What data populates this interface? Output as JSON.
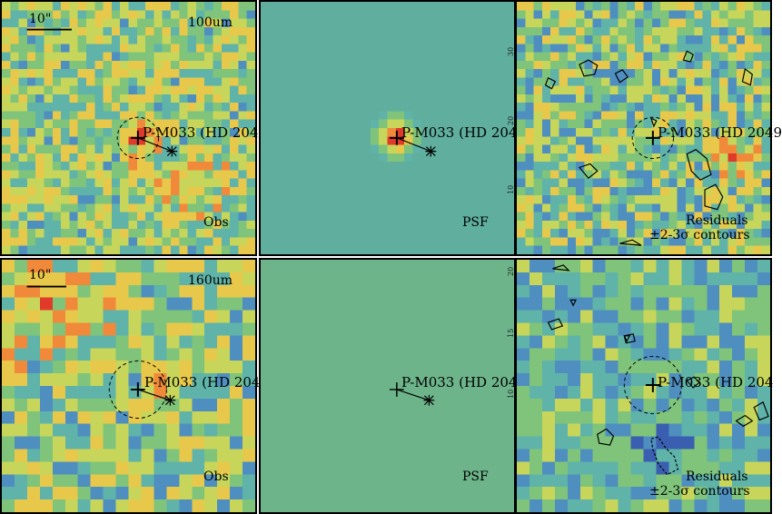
{
  "source_name": "P-M033 (HD 204",
  "source_name_top": "P-M033 (HD 2049",
  "scale_bar": "10\"",
  "rows": [
    {
      "band": "100um",
      "panels": [
        {
          "kind": "obs",
          "corner_label": "Obs"
        },
        {
          "kind": "psf",
          "corner_label": "PSF"
        },
        {
          "kind": "res",
          "corner_label_1": "Residuals",
          "corner_label_2": "±2-3σ contours"
        }
      ],
      "tick_numbers": [
        "30",
        "20",
        "10"
      ]
    },
    {
      "band": "160um",
      "panels": [
        {
          "kind": "obs",
          "corner_label": "Obs"
        },
        {
          "kind": "psf",
          "corner_label": "PSF"
        },
        {
          "kind": "res",
          "corner_label_1": "Residuals",
          "corner_label_2": "±2-3σ contours"
        }
      ],
      "tick_numbers": [
        "20",
        "15",
        "10"
      ]
    }
  ],
  "colors": {
    "colormap": [
      "#3b2a8c",
      "#3a5fb0",
      "#4f8fc0",
      "#5fb3a8",
      "#7fc47a",
      "#c7d65a",
      "#e8c84a",
      "#f08a3a",
      "#e03a2a"
    ],
    "psf_background_top": "#5fae9e",
    "psf_background_bottom": "#6db48a"
  }
}
